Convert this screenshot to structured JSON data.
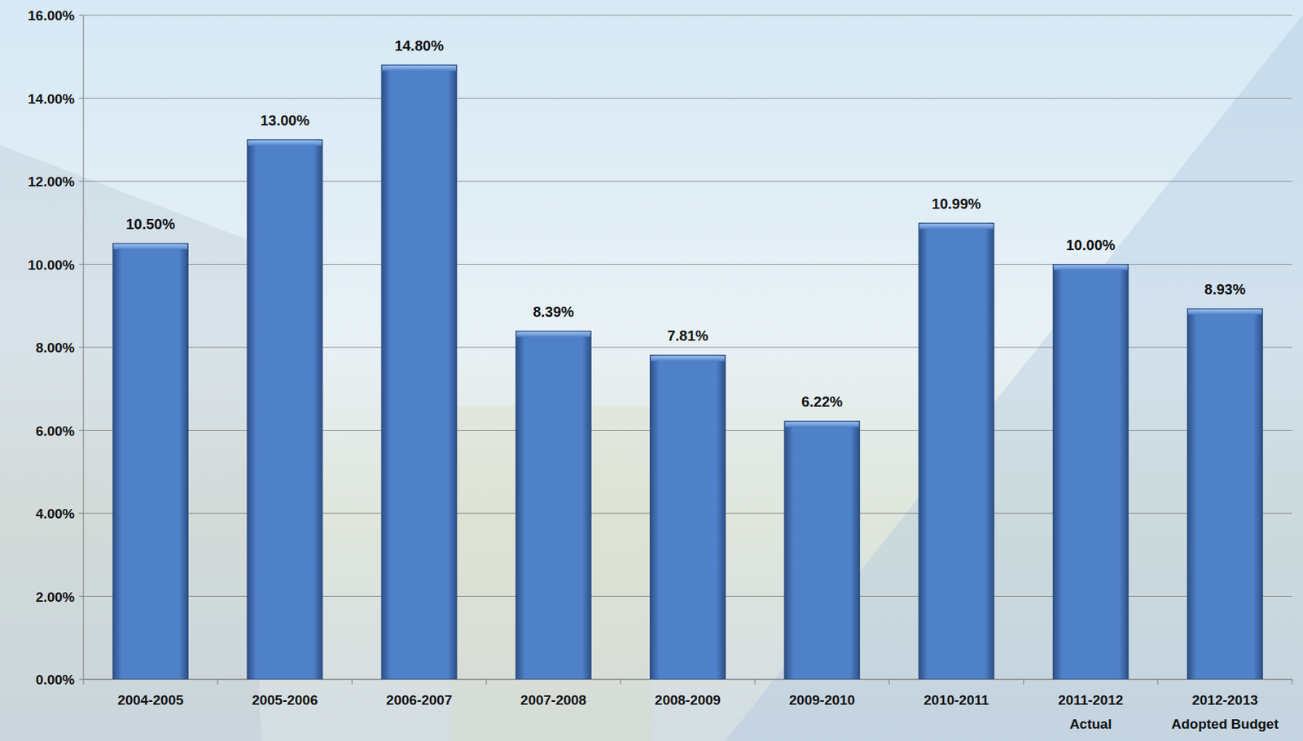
{
  "chart_data": {
    "type": "bar",
    "categories": [
      "2004-2005",
      "2005-2006",
      "2006-2007",
      "2007-2008",
      "2008-2009",
      "2009-2010",
      "2010-2011",
      "2011-2012 Actual",
      "2012-2013 Adopted Budget"
    ],
    "values": [
      10.5,
      13.0,
      14.8,
      8.39,
      7.81,
      6.22,
      10.99,
      10.0,
      8.93
    ],
    "value_labels": [
      "10.50%",
      "13.00%",
      "14.80%",
      "8.39%",
      "7.81%",
      "6.22%",
      "10.99%",
      "10.00%",
      "8.93%"
    ],
    "color": "#4f81c9",
    "ylim": [
      0,
      16
    ],
    "yticks": [
      {
        "value": 0,
        "label": "0.00%"
      },
      {
        "value": 2,
        "label": "2.00%"
      },
      {
        "value": 4,
        "label": "4.00%"
      },
      {
        "value": 6,
        "label": "6.00%"
      },
      {
        "value": 8,
        "label": "8.00%"
      },
      {
        "value": 10,
        "label": "10.00%"
      },
      {
        "value": 12,
        "label": "12.00%"
      },
      {
        "value": 14,
        "label": "14.00%"
      },
      {
        "value": 16,
        "label": "16.00%"
      }
    ],
    "grid": true,
    "data_labels": true
  }
}
